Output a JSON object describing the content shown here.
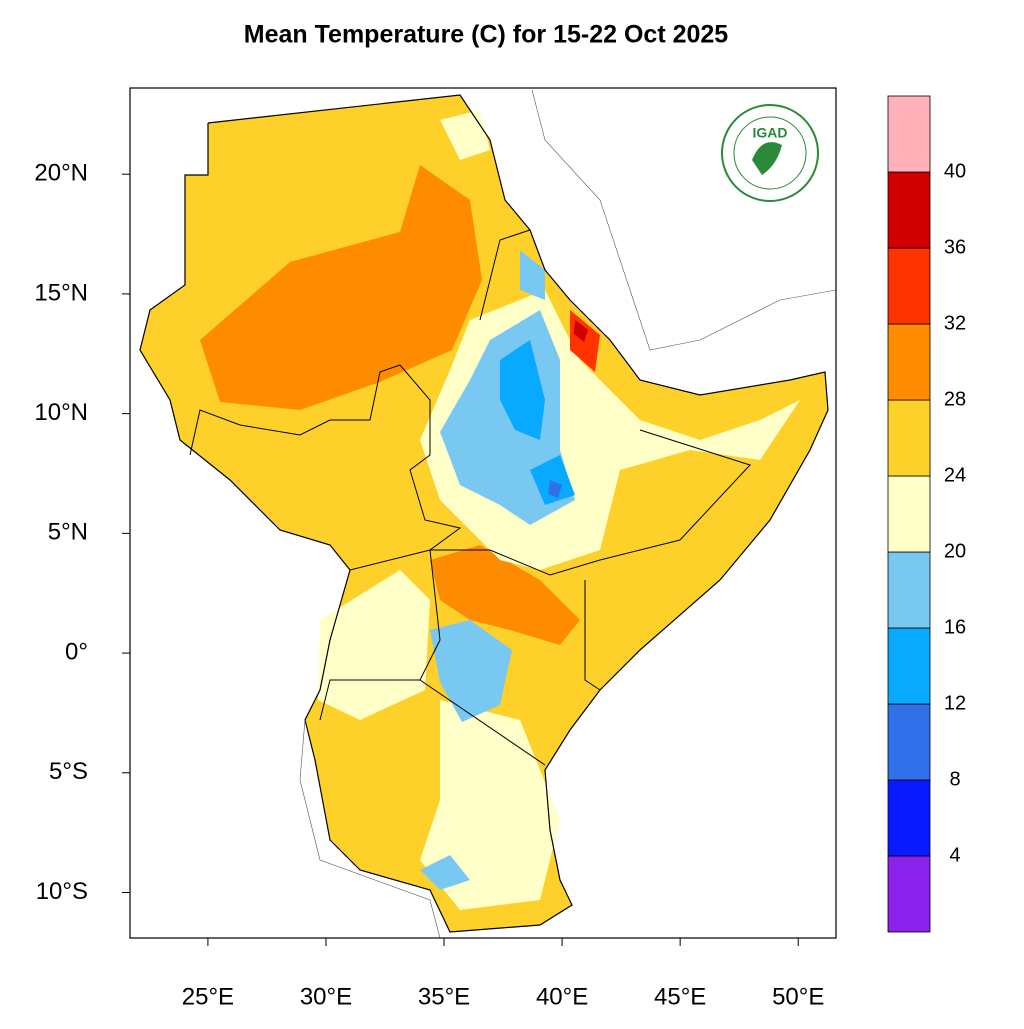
{
  "chart_data": {
    "type": "map",
    "title": "Mean Temperature (C) for 15-22 Oct 2025",
    "logo": "IGAD",
    "xlim": [
      21.7,
      51.6
    ],
    "ylim": [
      -11.9,
      23.6
    ],
    "xticks": [
      {
        "value": 25,
        "label": "25°E"
      },
      {
        "value": 30,
        "label": "30°E"
      },
      {
        "value": 35,
        "label": "35°E"
      },
      {
        "value": 40,
        "label": "40°E"
      },
      {
        "value": 45,
        "label": "45°E"
      },
      {
        "value": 50,
        "label": "50°E"
      }
    ],
    "yticks": [
      {
        "value": 20,
        "label": "20°N"
      },
      {
        "value": 15,
        "label": "15°N"
      },
      {
        "value": 10,
        "label": "10°N"
      },
      {
        "value": 5,
        "label": "5°N"
      },
      {
        "value": 0,
        "label": "0°"
      },
      {
        "value": -5,
        "label": "5°S"
      },
      {
        "value": -10,
        "label": "10°S"
      }
    ],
    "colorbar": {
      "levels": [
        4,
        8,
        12,
        16,
        20,
        24,
        28,
        32,
        36,
        40
      ],
      "colors": [
        "#8a22ec",
        "#0a1aff",
        "#3070e8",
        "#08aaff",
        "#78c8f2",
        "#ffffc8",
        "#fdd12a",
        "#ff8c00",
        "#ff3300",
        "#d00000",
        "#ffb0b8"
      ]
    }
  }
}
